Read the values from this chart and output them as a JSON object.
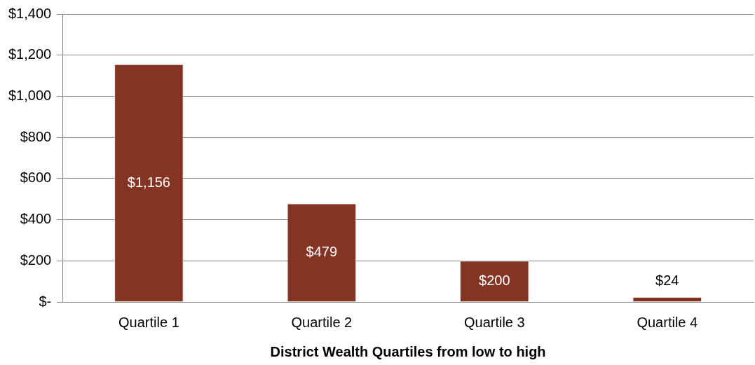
{
  "chart_data": {
    "type": "bar",
    "xlabel": "District Wealth Quartiles from low to high",
    "categories": [
      "Quartile 1",
      "Quartile 2",
      "Quartile 3",
      "Quartile 4"
    ],
    "values": [
      1156,
      479,
      200,
      24
    ],
    "color": "#843423",
    "value_labels": [
      "$1,156",
      "$479",
      "$200",
      "$24"
    ],
    "ylim": [
      0,
      1400
    ],
    "yticks": [
      {
        "value": 0,
        "label": "$-"
      },
      {
        "value": 200,
        "label": "$200"
      },
      {
        "value": 400,
        "label": "$400"
      },
      {
        "value": 600,
        "label": "$600"
      },
      {
        "value": 800,
        "label": "$800"
      },
      {
        "value": 1000,
        "label": "$1,000"
      },
      {
        "value": 1200,
        "label": "$1,200"
      },
      {
        "value": 1400,
        "label": "$1,400"
      }
    ],
    "grid": "y"
  }
}
